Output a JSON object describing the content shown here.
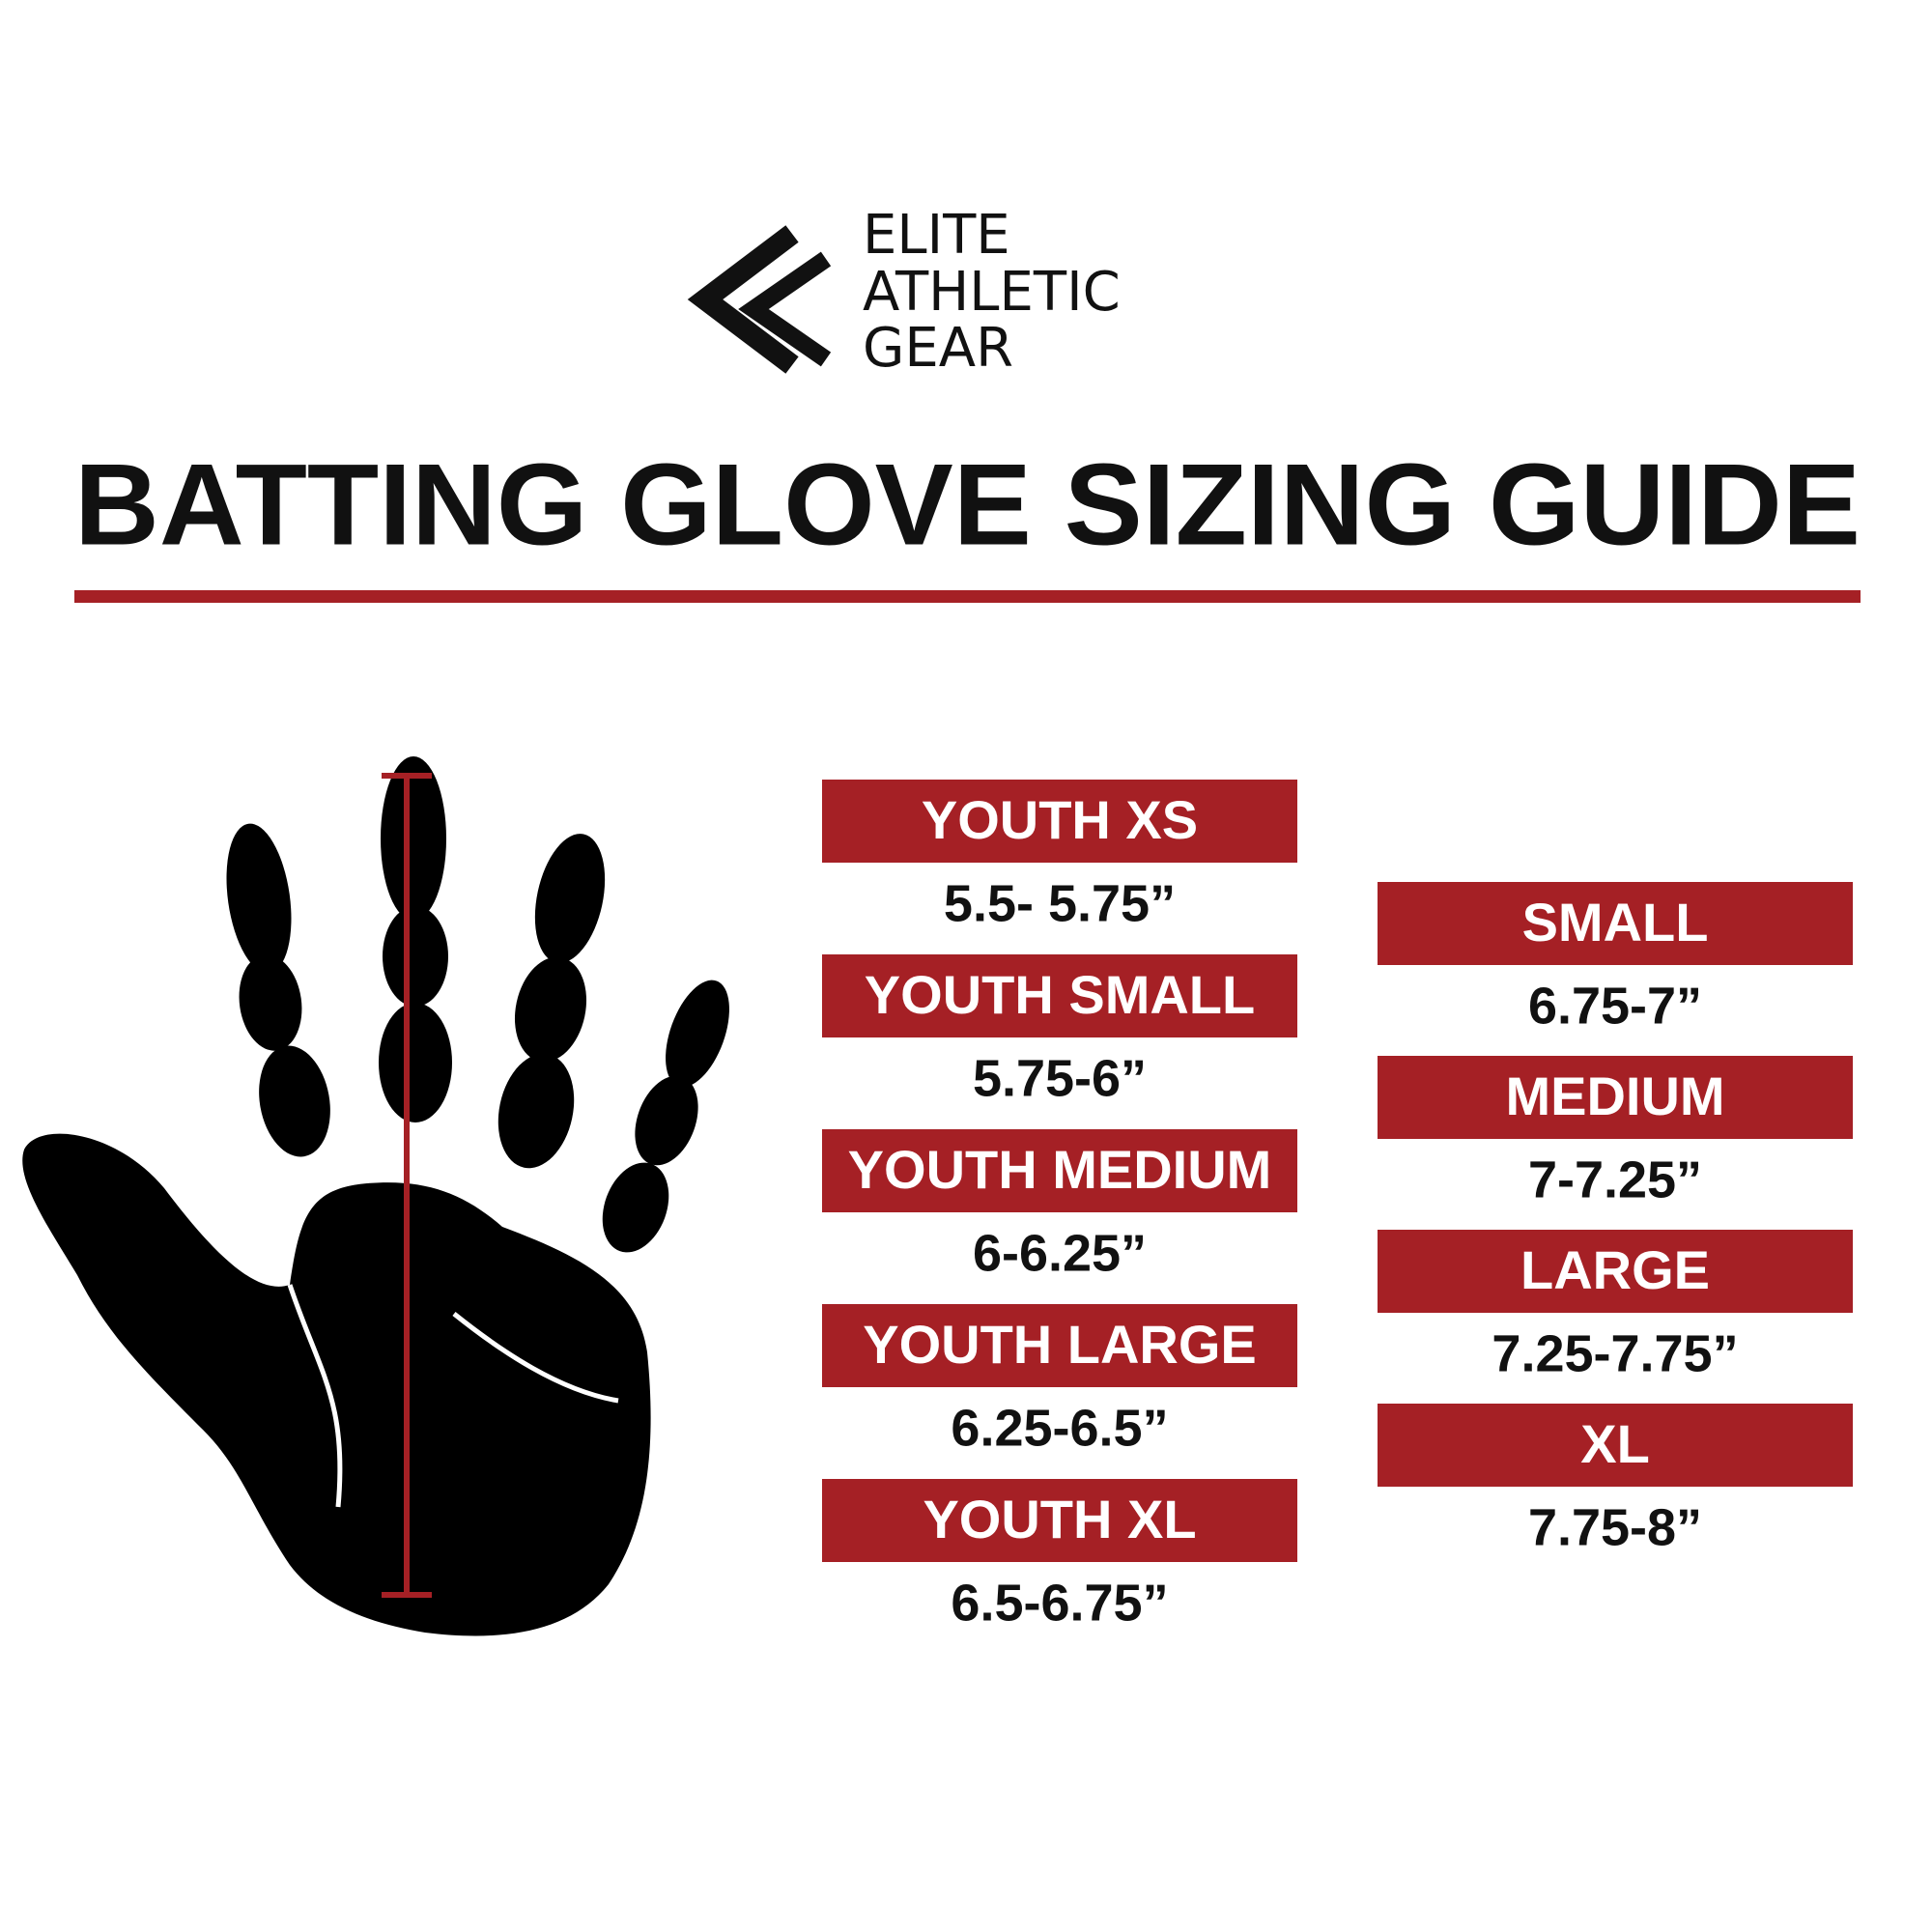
{
  "logo": {
    "lines": [
      "ELITE",
      "ATHLETIC",
      "GEAR"
    ]
  },
  "title": "BATTING GLOVE SIZING GUIDE",
  "youth_sizes": [
    {
      "size": "YOUTH XS",
      "range": "5.5- 5.75”"
    },
    {
      "size": "YOUTH SMALL",
      "range": "5.75-6”"
    },
    {
      "size": "YOUTH MEDIUM",
      "range": "6-6.25”"
    },
    {
      "size": "YOUTH LARGE",
      "range": "6.25-6.5”"
    },
    {
      "size": "YOUTH XL",
      "range": "6.5-6.75”"
    }
  ],
  "adult_sizes": [
    {
      "size": "SMALL",
      "range": "6.75-7”"
    },
    {
      "size": "MEDIUM",
      "range": "7-7.25”"
    },
    {
      "size": "LARGE",
      "range": "7.25-7.75”"
    },
    {
      "size": "XL",
      "range": "7.75-8”"
    }
  ]
}
